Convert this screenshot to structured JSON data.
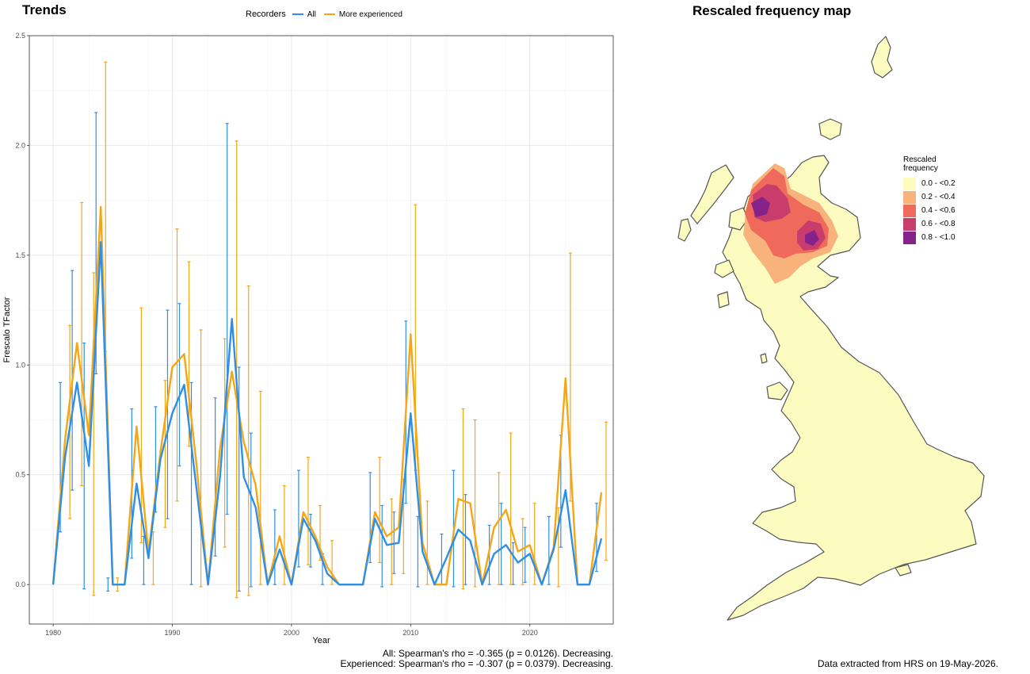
{
  "trends": {
    "title": "Trends",
    "caption_all": "All: Spearman's rho = -0.365 (p = 0.0126). Decreasing.",
    "caption_exp": "Experienced: Spearman's rho = -0.307 (p = 0.0379). Decreasing."
  },
  "legend": {
    "title": "Recorders",
    "items": [
      {
        "label": "All",
        "color": "#2e8fe6"
      },
      {
        "label": "More experienced",
        "color": "#f5a614"
      }
    ]
  },
  "map": {
    "title": "Rescaled frequency map",
    "legend_title": "Rescaled frequency",
    "legend_items": [
      {
        "label": "0.0 - <0.2",
        "color": "#fdfcc0"
      },
      {
        "label": "0.2 - <0.4",
        "color": "#f8b37c"
      },
      {
        "label": "0.4 - <0.6",
        "color": "#ef6a5a"
      },
      {
        "label": "0.6 - <0.8",
        "color": "#c93d6c"
      },
      {
        "label": "0.8 - <1.0",
        "color": "#86238a"
      }
    ],
    "source": "Data extracted from HRS on 19-May-2026."
  },
  "chart_data": {
    "type": "line",
    "title": "Trends",
    "xlabel": "Year",
    "ylabel": "Frescalo TFactor",
    "xlim": [
      1978,
      2027
    ],
    "ylim": [
      -0.18,
      2.5
    ],
    "xticks": [
      1980,
      1990,
      2000,
      2010,
      2020
    ],
    "yticks": [
      0.0,
      0.5,
      1.0,
      1.5,
      2.0,
      2.5
    ],
    "ytick_labels": [
      "0.0",
      "0.5",
      "1.0",
      "1.5",
      "2.0",
      "2.5"
    ],
    "grid": true,
    "legend_position": "top",
    "series": [
      {
        "name": "All",
        "color": "#2e8fe6",
        "points": [
          [
            1980,
            0,
            0,
            0
          ],
          [
            1981,
            0.58,
            0.24,
            0.92
          ],
          [
            1982,
            0.92,
            0.43,
            1.43
          ],
          [
            1983,
            0.54,
            -0.02,
            1.1
          ],
          [
            1984,
            1.56,
            0.96,
            2.15
          ],
          [
            1985,
            0.0,
            -0.03,
            0.03
          ],
          [
            1986,
            0.0,
            0.0,
            0.0
          ],
          [
            1987,
            0.46,
            0.12,
            0.8
          ],
          [
            1988,
            0.12,
            0.0,
            0.22
          ],
          [
            1989,
            0.57,
            0.33,
            0.81
          ],
          [
            1990,
            0.78,
            0.3,
            1.25
          ],
          [
            1991,
            0.91,
            0.54,
            1.28
          ],
          [
            1992,
            0.45,
            0.0,
            0.92
          ],
          [
            1993,
            0.0,
            0.0,
            0.0
          ],
          [
            1994,
            0.49,
            0.13,
            0.85
          ],
          [
            1995,
            1.21,
            0.32,
            2.1
          ],
          [
            1996,
            0.49,
            -0.03,
            0.99
          ],
          [
            1997,
            0.35,
            -0.01,
            0.69
          ],
          [
            1998,
            0.0,
            0.0,
            0.0
          ],
          [
            1999,
            0.16,
            0.0,
            0.34
          ],
          [
            2000,
            0.0,
            0.0,
            0.0
          ],
          [
            2001,
            0.3,
            0.08,
            0.52
          ],
          [
            2002,
            0.2,
            0.08,
            0.32
          ],
          [
            2003,
            0.05,
            0.0,
            0.14
          ],
          [
            2004,
            0.0,
            0.0,
            0.0
          ],
          [
            2005,
            0.0,
            0.0,
            0.0
          ],
          [
            2006,
            0.0,
            0.0,
            0.0
          ],
          [
            2007,
            0.3,
            0.1,
            0.51
          ],
          [
            2008,
            0.18,
            -0.01,
            0.36
          ],
          [
            2009,
            0.19,
            0.05,
            0.33
          ],
          [
            2010,
            0.78,
            0.37,
            1.2
          ],
          [
            2011,
            0.15,
            -0.01,
            0.31
          ],
          [
            2012,
            0.0,
            0.0,
            0.0
          ],
          [
            2013,
            0.12,
            0.0,
            0.23
          ],
          [
            2014,
            0.25,
            -0.01,
            0.52
          ],
          [
            2015,
            0.2,
            0.0,
            0.41
          ],
          [
            2016,
            0.0,
            0.0,
            0.0
          ],
          [
            2017,
            0.14,
            0.0,
            0.27
          ],
          [
            2018,
            0.18,
            0.0,
            0.37
          ],
          [
            2019,
            0.1,
            0.0,
            0.19
          ],
          [
            2020,
            0.14,
            0.01,
            0.26
          ],
          [
            2021,
            0.0,
            0.0,
            0.0
          ],
          [
            2022,
            0.16,
            0.0,
            0.31
          ],
          [
            2023,
            0.43,
            0.17,
            0.68
          ],
          [
            2024,
            0.0,
            0.0,
            0.0
          ],
          [
            2025,
            0.0,
            0.0,
            0.0
          ],
          [
            2026,
            0.21,
            0.06,
            0.37
          ]
        ]
      },
      {
        "name": "More experienced",
        "color": "#f5a614",
        "points": [
          [
            1980,
            0,
            0,
            0
          ],
          [
            1981,
            0.66,
            0.3,
            1.18
          ],
          [
            1982,
            1.1,
            0.45,
            1.74
          ],
          [
            1983,
            0.68,
            -0.05,
            1.42
          ],
          [
            1984,
            1.72,
            1.06,
            2.38
          ],
          [
            1985,
            0.0,
            -0.03,
            0.03
          ],
          [
            1986,
            0.0,
            0.0,
            0.0
          ],
          [
            1987,
            0.72,
            0.19,
            1.26
          ],
          [
            1988,
            0.14,
            0.0,
            0.24
          ],
          [
            1989,
            0.6,
            0.26,
            0.93
          ],
          [
            1990,
            0.99,
            0.38,
            1.62
          ],
          [
            1991,
            1.05,
            0.63,
            1.47
          ],
          [
            1992,
            0.56,
            -0.01,
            1.16
          ],
          [
            1993,
            0.0,
            0.0,
            0.0
          ],
          [
            1994,
            0.62,
            0.17,
            1.12
          ],
          [
            1995,
            0.97,
            -0.06,
            2.02
          ],
          [
            1996,
            0.65,
            -0.05,
            1.36
          ],
          [
            1997,
            0.45,
            0.0,
            0.88
          ],
          [
            1998,
            0.0,
            0.0,
            0.0
          ],
          [
            1999,
            0.22,
            0.0,
            0.45
          ],
          [
            2000,
            0.0,
            0.0,
            0.0
          ],
          [
            2001,
            0.33,
            0.09,
            0.58
          ],
          [
            2002,
            0.22,
            0.11,
            0.36
          ],
          [
            2003,
            0.08,
            0.0,
            0.2
          ],
          [
            2004,
            0.0,
            0.0,
            0.0
          ],
          [
            2005,
            0.0,
            0.0,
            0.0
          ],
          [
            2006,
            0.0,
            0.0,
            0.0
          ],
          [
            2007,
            0.33,
            0.1,
            0.58
          ],
          [
            2008,
            0.22,
            0.0,
            0.39
          ],
          [
            2009,
            0.26,
            0.05,
            0.48
          ],
          [
            2010,
            1.14,
            0.52,
            1.73
          ],
          [
            2011,
            0.19,
            0.0,
            0.38
          ],
          [
            2012,
            0.0,
            0.0,
            0.0
          ],
          [
            2013,
            0.0,
            0.0,
            0.0
          ],
          [
            2014,
            0.39,
            -0.02,
            0.8
          ],
          [
            2015,
            0.37,
            -0.01,
            0.75
          ],
          [
            2016,
            0.0,
            0.0,
            0.0
          ],
          [
            2017,
            0.26,
            0.0,
            0.51
          ],
          [
            2018,
            0.34,
            0.0,
            0.69
          ],
          [
            2019,
            0.15,
            0.0,
            0.3
          ],
          [
            2020,
            0.18,
            0.0,
            0.37
          ],
          [
            2021,
            0.0,
            0.0,
            0.0
          ],
          [
            2022,
            0.17,
            -0.01,
            0.35
          ],
          [
            2023,
            0.94,
            0.38,
            1.51
          ],
          [
            2024,
            0.0,
            0.0,
            0.0
          ],
          [
            2025,
            0.0,
            0.0,
            0.0
          ],
          [
            2026,
            0.42,
            0.11,
            0.74
          ]
        ]
      }
    ]
  }
}
